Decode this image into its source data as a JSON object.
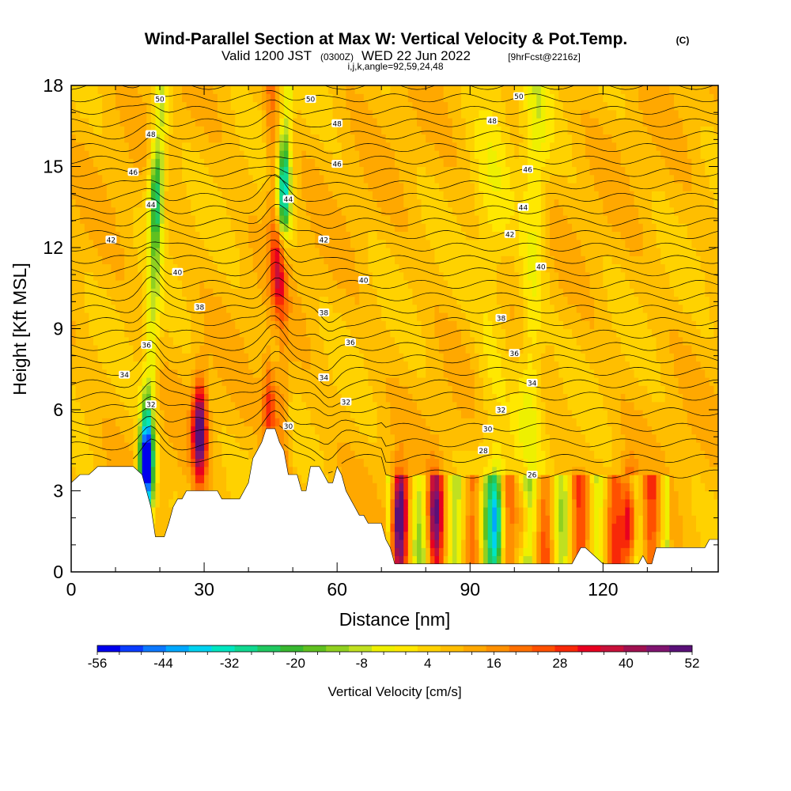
{
  "title": {
    "main": "Wind-Parallel Section at Max W: Vertical Velocity & Pot.Temp.",
    "main_tag": "(C)",
    "valid_prefix": "Valid 1200 JST",
    "valid_zulu": "(0300Z)",
    "valid_date": "WED 22 Jun 2022",
    "forecast": "[9hrFcst@2216z]",
    "indices": "i,j,k,angle=92,59,24,48"
  },
  "colors": {
    "palette": [
      "#0000ee",
      "#0a3cff",
      "#0c78ff",
      "#00a8ff",
      "#00d2f0",
      "#00e6c0",
      "#10d890",
      "#20c860",
      "#38b830",
      "#60c020",
      "#90d020",
      "#c0e020",
      "#eef000",
      "#ffe800",
      "#ffd200",
      "#ffbe00",
      "#ffa800",
      "#ff9000",
      "#ff7000",
      "#ff5000",
      "#f82808",
      "#e80020",
      "#c8103a",
      "#a01050",
      "#801470",
      "#5a1078"
    ],
    "terrain": "#ffffff",
    "contour": "#000000"
  },
  "chart_data": {
    "type": "heatmap",
    "xlabel": "Distance [nm]",
    "ylabel": "Height [Kft MSL]",
    "xlim": [
      0,
      146
    ],
    "ylim": [
      0,
      18
    ],
    "x_ticks": [
      0,
      30,
      60,
      90,
      120
    ],
    "y_ticks": [
      0,
      3,
      6,
      9,
      12,
      15,
      18
    ],
    "colorbar": {
      "label": "Vertical Velocity [cm/s]",
      "min": -56,
      "max": 52,
      "step": 4,
      "tick_labels": [
        -56,
        -44,
        -32,
        -20,
        -8,
        4,
        16,
        28,
        40,
        52
      ]
    },
    "contour_labels": [
      {
        "x": 20,
        "y": 17.5,
        "v": "50"
      },
      {
        "x": 54,
        "y": 17.5,
        "v": "50"
      },
      {
        "x": 101,
        "y": 17.6,
        "v": "50"
      },
      {
        "x": 18,
        "y": 16.2,
        "v": "48"
      },
      {
        "x": 60,
        "y": 16.6,
        "v": "48"
      },
      {
        "x": 95,
        "y": 16.7,
        "v": "48"
      },
      {
        "x": 14,
        "y": 14.8,
        "v": "46"
      },
      {
        "x": 60,
        "y": 15.1,
        "v": "46"
      },
      {
        "x": 103,
        "y": 14.9,
        "v": "46"
      },
      {
        "x": 18,
        "y": 13.6,
        "v": "44"
      },
      {
        "x": 49,
        "y": 13.8,
        "v": "44"
      },
      {
        "x": 102,
        "y": 13.5,
        "v": "44"
      },
      {
        "x": 9,
        "y": 12.3,
        "v": "42"
      },
      {
        "x": 57,
        "y": 12.3,
        "v": "42"
      },
      {
        "x": 99,
        "y": 12.5,
        "v": "42"
      },
      {
        "x": 24,
        "y": 11.1,
        "v": "40"
      },
      {
        "x": 66,
        "y": 10.8,
        "v": "40"
      },
      {
        "x": 106,
        "y": 11.3,
        "v": "40"
      },
      {
        "x": 29,
        "y": 9.8,
        "v": "38"
      },
      {
        "x": 57,
        "y": 9.6,
        "v": "38"
      },
      {
        "x": 97,
        "y": 9.4,
        "v": "38"
      },
      {
        "x": 17,
        "y": 8.4,
        "v": "36"
      },
      {
        "x": 63,
        "y": 8.5,
        "v": "36"
      },
      {
        "x": 100,
        "y": 8.1,
        "v": "36"
      },
      {
        "x": 12,
        "y": 7.3,
        "v": "34"
      },
      {
        "x": 57,
        "y": 7.2,
        "v": "34"
      },
      {
        "x": 104,
        "y": 7.0,
        "v": "34"
      },
      {
        "x": 18,
        "y": 6.2,
        "v": "32"
      },
      {
        "x": 62,
        "y": 6.3,
        "v": "32"
      },
      {
        "x": 97,
        "y": 6.0,
        "v": "32"
      },
      {
        "x": 49,
        "y": 5.4,
        "v": "30"
      },
      {
        "x": 94,
        "y": 5.3,
        "v": "30"
      },
      {
        "x": 93,
        "y": 4.5,
        "v": "28"
      },
      {
        "x": 104,
        "y": 3.6,
        "v": "26"
      }
    ],
    "terrain_profile": [
      [
        0,
        3.3
      ],
      [
        2,
        3.6
      ],
      [
        4,
        3.6
      ],
      [
        6,
        3.9
      ],
      [
        10,
        3.9
      ],
      [
        12,
        3.9
      ],
      [
        14,
        3.9
      ],
      [
        16,
        3.6
      ],
      [
        17,
        3.0
      ],
      [
        18,
        2.4
      ],
      [
        19,
        1.3
      ],
      [
        21,
        1.3
      ],
      [
        22,
        1.8
      ],
      [
        23,
        2.4
      ],
      [
        24,
        2.7
      ],
      [
        25,
        2.7
      ],
      [
        26,
        3.0
      ],
      [
        30,
        3.0
      ],
      [
        33,
        3.0
      ],
      [
        34,
        2.7
      ],
      [
        38,
        2.7
      ],
      [
        39,
        3.0
      ],
      [
        40,
        3.3
      ],
      [
        41,
        4.2
      ],
      [
        42,
        4.5
      ],
      [
        43,
        4.8
      ],
      [
        44,
        5.3
      ],
      [
        46,
        5.3
      ],
      [
        47,
        4.8
      ],
      [
        48,
        4.5
      ],
      [
        49,
        3.6
      ],
      [
        51,
        3.6
      ],
      [
        52,
        3.0
      ],
      [
        53,
        3.0
      ],
      [
        54,
        3.9
      ],
      [
        56,
        3.9
      ],
      [
        57,
        3.6
      ],
      [
        58,
        3.3
      ],
      [
        59,
        3.3
      ],
      [
        60,
        3.9
      ],
      [
        61,
        3.6
      ],
      [
        62,
        3.0
      ],
      [
        63,
        2.7
      ],
      [
        64,
        2.4
      ],
      [
        65,
        2.1
      ],
      [
        66,
        2.1
      ],
      [
        67,
        1.8
      ],
      [
        70,
        1.8
      ],
      [
        71,
        1.2
      ],
      [
        72,
        0.9
      ],
      [
        73,
        0.3
      ],
      [
        79,
        0.3
      ],
      [
        88,
        0.3
      ],
      [
        100,
        0.3
      ],
      [
        110,
        0.3
      ],
      [
        113,
        0.3
      ],
      [
        114,
        0.6
      ],
      [
        115,
        0.9
      ],
      [
        116,
        0.9
      ],
      [
        118,
        0.6
      ],
      [
        120,
        0.3
      ],
      [
        128,
        0.3
      ],
      [
        129,
        0.6
      ],
      [
        130,
        0.3
      ],
      [
        131,
        0.3
      ],
      [
        132,
        0.9
      ],
      [
        140,
        0.9
      ],
      [
        143,
        0.9
      ],
      [
        144,
        1.2
      ],
      [
        146,
        1.2
      ]
    ],
    "updraft_cores": [
      {
        "x": 17,
        "z": 4.0,
        "w": -54
      },
      {
        "x": 29,
        "z": 5.2,
        "w": 50
      },
      {
        "x": 45,
        "z": 6.0,
        "w": 36
      },
      {
        "x": 47,
        "z": 11.2,
        "w": 34
      },
      {
        "x": 74,
        "z": 2.0,
        "w": 38
      },
      {
        "x": 82,
        "z": 2.0,
        "w": 30
      },
      {
        "x": 102,
        "z": 2.0,
        "w": 28
      },
      {
        "x": 126,
        "z": 1.8,
        "w": 42
      },
      {
        "x": 48,
        "z": 14.0,
        "w": -26
      },
      {
        "x": 19,
        "z": 14.0,
        "w": -18
      },
      {
        "x": 96,
        "z": 2.0,
        "w": -22
      }
    ]
  }
}
